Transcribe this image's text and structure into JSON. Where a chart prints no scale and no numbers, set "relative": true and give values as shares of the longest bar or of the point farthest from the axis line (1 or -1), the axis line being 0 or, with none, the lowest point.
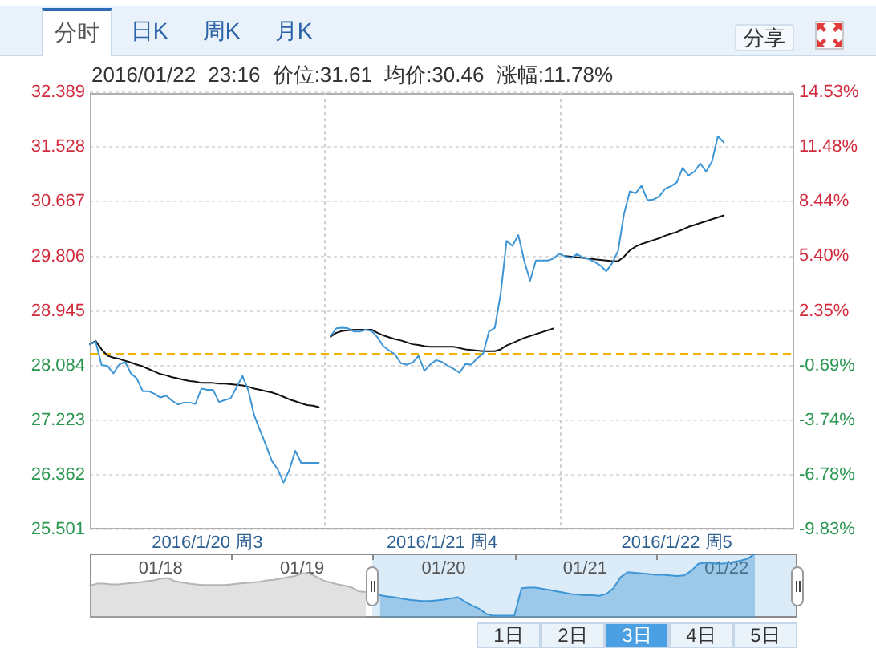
{
  "chart_data": [
    {
      "type": "line",
      "title": "2016/01/22 23:16 价位:31.61 均价:30.46 涨幅:11.78%",
      "annotations": [
        "分时",
        "日K",
        "周K",
        "月K",
        "分享"
      ],
      "categories": [
        null,
        null,
        null,
        null,
        null,
        null,
        null,
        null,
        null,
        null,
        null,
        null,
        null,
        null,
        null,
        null,
        null,
        null,
        null,
        null,
        "2016/1/20 周3",
        null,
        null,
        null,
        null,
        null,
        null,
        null,
        null,
        null,
        null,
        null,
        null,
        null,
        null,
        null,
        null,
        null,
        null,
        null,
        null,
        null,
        null,
        null,
        null,
        null,
        null,
        null,
        null,
        null,
        null,
        null,
        null,
        null,
        null,
        null,
        null,
        null,
        null,
        null,
        "2016/1/21 周4",
        null,
        null,
        null,
        null,
        null,
        null,
        null,
        null,
        null,
        null,
        null,
        null,
        null,
        null,
        null,
        null,
        null,
        null,
        null,
        null,
        null,
        null,
        null,
        null,
        null,
        null,
        null,
        null,
        null,
        null,
        null,
        null,
        null,
        null,
        null,
        null,
        null,
        null,
        null,
        "2016/1/22 周5",
        null,
        null,
        null,
        null,
        null,
        null,
        null,
        null,
        null,
        null,
        null,
        null,
        null,
        null,
        null,
        null,
        null,
        null,
        null,
        null
      ],
      "ylim": [
        25.501,
        32.389
      ],
      "yticks": [
        25.501,
        26.362,
        27.223,
        28.084,
        28.945,
        29.806,
        30.667,
        31.528,
        32.389
      ],
      "y2lim": [
        -9.83,
        14.53
      ],
      "y2ticks": [
        {
          "value": -9.83,
          "label": "-9.83%"
        },
        {
          "value": -6.78,
          "label": "-6.78%"
        },
        {
          "value": -3.74,
          "label": "-3.74%"
        },
        {
          "value": -0.69,
          "label": "-0.69%"
        },
        {
          "value": 2.35,
          "label": "2.35%"
        },
        {
          "value": 5.4,
          "label": "5.40%"
        },
        {
          "value": 8.44,
          "label": "8.44%"
        },
        {
          "value": 11.48,
          "label": "11.48%"
        },
        {
          "value": 14.53,
          "label": "14.53%"
        }
      ],
      "grid": true,
      "marker": "none",
      "ref_lines": [
        {
          "axis": "y",
          "value": 28.28,
          "color": "#f0b400",
          "line_style": "dashed"
        }
      ],
      "series": [
        {
          "color": "#3d95d5",
          "values": [
            28.42,
            28.46,
            28.09,
            28.08,
            27.96,
            28.1,
            28.14,
            27.96,
            27.88,
            27.68,
            27.68,
            27.64,
            27.58,
            27.61,
            27.53,
            27.47,
            27.5,
            27.5,
            27.48,
            27.72,
            27.7,
            27.7,
            27.51,
            27.54,
            27.57,
            27.74,
            27.92,
            27.69,
            27.3,
            27.06,
            26.83,
            26.58,
            26.45,
            26.24,
            26.44,
            26.74,
            26.55,
            26.55,
            26.55,
            26.55,
            null,
            28.55,
            28.67,
            28.68,
            28.67,
            28.62,
            28.62,
            28.65,
            28.63,
            28.53,
            28.39,
            28.32,
            28.26,
            28.12,
            28.1,
            28.13,
            28.24,
            28.0,
            28.1,
            28.17,
            28.14,
            28.08,
            28.03,
            27.97,
            28.11,
            28.1,
            28.2,
            28.27,
            28.62,
            28.68,
            29.22,
            30.05,
            29.97,
            30.14,
            29.74,
            29.42,
            29.74,
            29.74,
            29.74,
            29.77,
            29.85,
            29.8,
            29.78,
            29.84,
            29.79,
            29.76,
            29.72,
            29.66,
            29.57,
            29.7,
            29.89,
            30.47,
            30.83,
            30.8,
            30.92,
            30.69,
            30.7,
            30.75,
            30.87,
            30.91,
            30.97,
            31.2,
            31.08,
            31.14,
            31.27,
            31.14,
            31.3,
            31.7,
            31.6,
            null,
            null,
            null,
            null,
            null,
            null,
            null,
            null,
            null,
            null,
            null,
            null
          ]
        },
        {
          "color": "#111111",
          "values": [
            28.42,
            28.47,
            28.34,
            28.24,
            28.21,
            28.19,
            28.16,
            28.13,
            28.1,
            28.07,
            28.03,
            27.99,
            27.95,
            27.93,
            27.9,
            27.88,
            27.86,
            27.84,
            27.83,
            27.81,
            27.81,
            27.81,
            27.8,
            27.8,
            27.79,
            27.78,
            27.77,
            27.75,
            27.72,
            27.7,
            27.68,
            27.66,
            27.63,
            27.59,
            27.55,
            27.52,
            27.49,
            27.46,
            27.45,
            27.43,
            null,
            28.54,
            28.6,
            28.63,
            28.64,
            28.65,
            28.65,
            28.65,
            28.65,
            28.6,
            28.56,
            28.53,
            28.5,
            28.48,
            28.45,
            28.42,
            28.41,
            28.39,
            28.38,
            28.38,
            28.38,
            28.38,
            28.38,
            28.36,
            28.34,
            28.33,
            28.32,
            28.31,
            28.31,
            28.31,
            28.34,
            28.4,
            28.44,
            28.48,
            28.52,
            28.55,
            28.58,
            28.61,
            28.64,
            28.67,
            null,
            29.81,
            29.8,
            29.79,
            29.78,
            29.77,
            29.76,
            29.75,
            29.74,
            29.73,
            29.73,
            29.8,
            29.9,
            29.96,
            30.0,
            30.03,
            30.06,
            30.09,
            30.13,
            30.16,
            30.19,
            30.23,
            30.27,
            30.3,
            30.33,
            30.36,
            30.39,
            30.42,
            30.45,
            null,
            null,
            null,
            null,
            null,
            null,
            null,
            null,
            null,
            null,
            null,
            null
          ]
        }
      ]
    },
    {
      "type": "area",
      "relative": true,
      "marker": "none",
      "annotations": [
        "1日",
        "2日",
        "3日",
        "4日",
        "5日"
      ],
      "categories": [
        null,
        null,
        null,
        null,
        null,
        null,
        null,
        null,
        null,
        null,
        "01/18",
        null,
        null,
        null,
        null,
        null,
        null,
        null,
        null,
        null,
        null,
        null,
        null,
        null,
        null,
        null,
        null,
        null,
        null,
        null,
        "01/19",
        null,
        null,
        null,
        null,
        null,
        null,
        null,
        null,
        null,
        null,
        null,
        null,
        null,
        null,
        null,
        null,
        null,
        null,
        null,
        "01/20",
        null,
        null,
        null,
        null,
        null,
        null,
        null,
        null,
        null,
        null,
        null,
        null,
        null,
        null,
        null,
        null,
        null,
        null,
        null,
        "01/21",
        null,
        null,
        null,
        null,
        null,
        null,
        null,
        null,
        null,
        null,
        null,
        null,
        null,
        null,
        null,
        null,
        null,
        null,
        null,
        "01/22",
        null,
        null,
        null,
        null,
        null,
        null,
        null,
        null,
        null,
        null
      ],
      "series": [
        {
          "color": "#b4b4b4",
          "values": [
            0.5,
            0.53,
            0.53,
            0.52,
            0.52,
            0.53,
            0.54,
            0.55,
            0.57,
            0.58,
            0.61,
            0.62,
            0.57,
            0.55,
            0.53,
            0.52,
            0.51,
            0.51,
            0.51,
            0.51,
            0.52,
            0.53,
            0.54,
            0.55,
            0.56,
            0.58,
            0.59,
            0.61,
            0.63,
            0.65,
            0.69,
            0.69,
            0.64,
            0.58,
            0.55,
            0.52,
            0.5,
            0.47,
            0.41,
            0.4,
            null,
            null,
            null,
            null,
            null,
            null,
            null,
            null,
            null,
            null,
            null,
            null,
            null,
            null,
            null,
            null,
            null,
            null,
            null,
            null,
            null,
            null,
            null,
            null,
            null,
            null,
            null,
            null,
            null,
            null,
            null,
            null,
            null,
            null,
            null,
            null,
            null,
            null,
            null,
            null,
            null,
            null,
            null,
            null,
            null,
            null,
            null,
            null,
            null,
            null,
            null,
            null,
            null,
            null,
            null,
            null,
            null,
            null,
            null,
            null,
            null
          ]
        },
        {
          "color": "#3d95d5",
          "values": [
            null,
            null,
            null,
            null,
            null,
            null,
            null,
            null,
            null,
            null,
            null,
            null,
            null,
            null,
            null,
            null,
            null,
            null,
            null,
            null,
            null,
            null,
            null,
            null,
            null,
            null,
            null,
            null,
            null,
            null,
            null,
            null,
            null,
            null,
            null,
            null,
            null,
            null,
            null,
            null,
            null,
            0.35,
            0.33,
            0.32,
            0.3,
            0.28,
            0.27,
            0.26,
            0.26,
            0.27,
            0.28,
            0.3,
            0.32,
            0.25,
            0.19,
            0.14,
            0.06,
            0.03,
            0.03,
            0.03,
            0.03,
            0.46,
            0.47,
            0.47,
            0.45,
            0.43,
            0.41,
            0.39,
            0.37,
            0.36,
            0.35,
            0.35,
            0.34,
            0.37,
            0.46,
            0.63,
            0.71,
            0.7,
            0.69,
            0.68,
            0.67,
            0.67,
            0.66,
            0.65,
            0.66,
            0.73,
            0.84,
            0.86,
            0.85,
            0.84,
            0.85,
            0.87,
            0.89,
            0.92,
            1.0,
            null,
            null,
            null,
            null,
            null,
            null
          ]
        }
      ]
    }
  ]
}
